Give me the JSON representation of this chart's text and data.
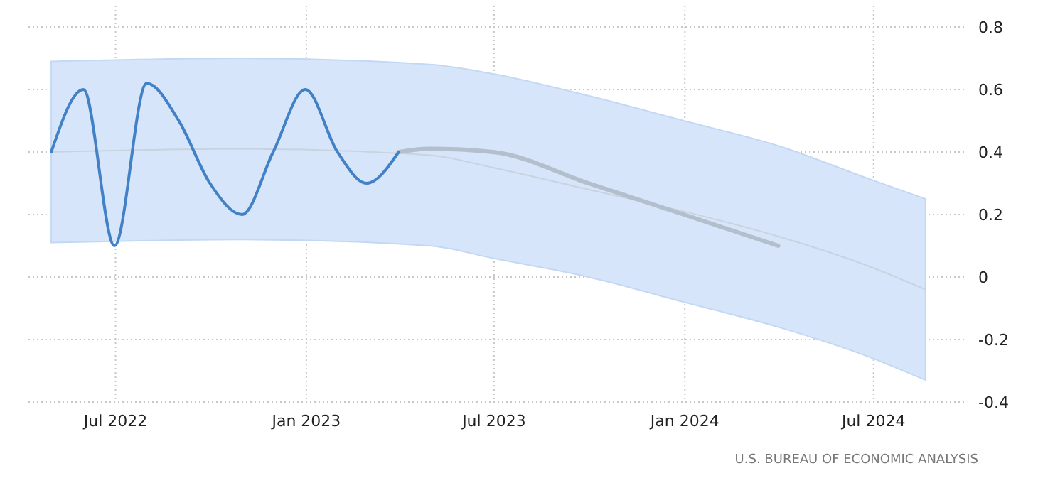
{
  "chart_data": {
    "type": "line",
    "annotations": [
      "U.S. BUREAU OF ECONOMIC ANALYSIS"
    ],
    "xlim": [
      "2022-04-08",
      "2024-09-29"
    ],
    "ylim": [
      -0.4,
      0.8
    ],
    "xticks": [
      {
        "value": "2022-07-01",
        "label": "Jul 2022"
      },
      {
        "value": "2023-01-01",
        "label": "Jan 2023"
      },
      {
        "value": "2023-07-01",
        "label": "Jul 2023"
      },
      {
        "value": "2024-01-01",
        "label": "Jan 2024"
      },
      {
        "value": "2024-07-01",
        "label": "Jul 2024"
      }
    ],
    "yticks": [
      -0.4,
      -0.2,
      0,
      0.2,
      0.4,
      0.6,
      0.8
    ],
    "grid": true,
    "marker": "none",
    "line_style": "solid",
    "series": [
      {
        "color": "#c9d3e0",
        "x": [
          "2022-04-30",
          "2022-10-31",
          "2023-04-30",
          "2023-06-30",
          "2023-09-30",
          "2023-12-31",
          "2024-03-31",
          "2024-06-30",
          "2024-08-20"
        ],
        "values": [
          0.4,
          0.41,
          0.39,
          0.35,
          0.28,
          0.21,
          0.13,
          0.03,
          -0.04
        ],
        "lower": [
          0.11,
          0.12,
          0.1,
          0.06,
          0.0,
          -0.08,
          -0.16,
          -0.26,
          -0.33
        ],
        "upper": [
          0.69,
          0.7,
          0.68,
          0.65,
          0.58,
          0.5,
          0.42,
          0.31,
          0.25
        ]
      },
      {
        "color": "#b4bfcd",
        "x": [
          "2023-03-31",
          "2023-04-30",
          "2023-06-30",
          "2023-09-30",
          "2023-12-31",
          "2024-03-31"
        ],
        "values": [
          0.4,
          0.41,
          0.4,
          0.3,
          0.2,
          0.1
        ]
      },
      {
        "color": "#4281c6",
        "x": [
          "2022-04-30",
          "2022-05-31",
          "2022-06-30",
          "2022-07-31",
          "2022-08-31",
          "2022-09-30",
          "2022-10-31",
          "2022-11-30",
          "2022-12-31",
          "2023-01-31",
          "2023-02-28",
          "2023-03-31"
        ],
        "values": [
          0.4,
          0.6,
          0.1,
          0.62,
          0.5,
          0.3,
          0.2,
          0.4,
          0.6,
          0.4,
          0.3,
          0.4
        ]
      }
    ]
  }
}
